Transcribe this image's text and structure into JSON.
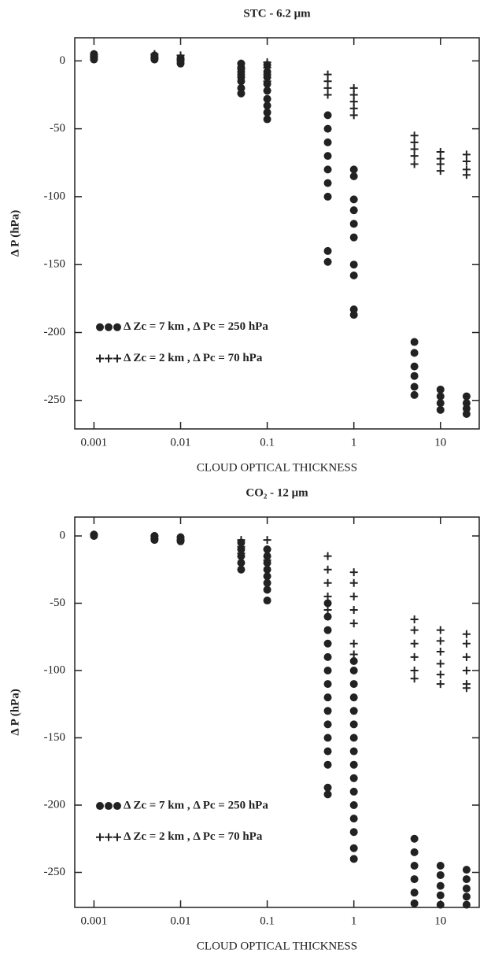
{
  "chart_data": [
    {
      "type": "scatter",
      "title": "STC - 6.2 μm",
      "x_label": "CLOUD OPTICAL THICKNESS",
      "y_label": "Δ P (hPa)",
      "log_x": true,
      "xlim": [
        0.0006,
        28
      ],
      "ylim": [
        -271,
        17
      ],
      "xticks": [
        0.001,
        0.01,
        0.1,
        1,
        10
      ],
      "yticks": [
        -250,
        -200,
        -150,
        -100,
        -50,
        0
      ],
      "legend": "left",
      "series": [
        {
          "name": "Δ Zc = 7 km , Δ Pc = 250 hPa",
          "marker": "circle",
          "color": "#222222",
          "x": [
            0.001,
            0.001,
            0.001,
            0.001,
            0.001,
            0.005,
            0.005,
            0.005,
            0.005,
            0.01,
            0.01,
            0.01,
            0.01,
            0.05,
            0.05,
            0.05,
            0.05,
            0.05,
            0.05,
            0.05,
            0.1,
            0.1,
            0.1,
            0.1,
            0.1,
            0.1,
            0.1,
            0.1,
            0.1,
            0.5,
            0.5,
            0.5,
            0.5,
            0.5,
            0.5,
            0.5,
            0.5,
            0.5,
            1,
            1,
            1,
            1,
            1,
            1,
            1,
            1,
            1,
            1,
            5,
            5,
            5,
            5,
            5,
            5,
            10,
            10,
            10,
            10,
            20,
            20,
            20,
            20
          ],
          "values": [
            5,
            3,
            2,
            1,
            4,
            3,
            1,
            2,
            4,
            2,
            0,
            -2,
            1,
            -2,
            -5,
            -8,
            -12,
            -15,
            -20,
            -24,
            -3,
            -8,
            -12,
            -17,
            -22,
            -28,
            -33,
            -38,
            -43,
            -40,
            -50,
            -60,
            -70,
            -80,
            -90,
            -100,
            -140,
            -148,
            -80,
            -85,
            -102,
            -110,
            -120,
            -130,
            -150,
            -158,
            -183,
            -187,
            -207,
            -215,
            -225,
            -232,
            -240,
            -246,
            -242,
            -247,
            -252,
            -257,
            -247,
            -252,
            -256,
            -260
          ]
        },
        {
          "name": "Δ Zc = 2 km , Δ Pc = 70 hPa",
          "marker": "cross",
          "color": "#222222",
          "x": [
            0.001,
            0.001,
            0.005,
            0.005,
            0.01,
            0.01,
            0.05,
            0.05,
            0.05,
            0.1,
            0.1,
            0.1,
            0.1,
            0.5,
            0.5,
            0.5,
            0.5,
            1,
            1,
            1,
            1,
            1,
            5,
            5,
            5,
            5,
            5,
            10,
            10,
            10,
            10,
            20,
            20,
            20,
            20
          ],
          "values": [
            3,
            5,
            5,
            2,
            4,
            1,
            -2,
            -6,
            -10,
            -1,
            -5,
            -10,
            -15,
            -10,
            -15,
            -20,
            -25,
            -20,
            -25,
            -30,
            -35,
            -40,
            -55,
            -60,
            -65,
            -70,
            -76,
            -67,
            -72,
            -76,
            -81,
            -69,
            -74,
            -80,
            -84
          ]
        }
      ]
    },
    {
      "type": "scatter",
      "title": "CO₂ - 12 μm",
      "x_label": "CLOUD OPTICAL THICKNESS",
      "y_label": "Δ P (hPa)",
      "log_x": true,
      "xlim": [
        0.0006,
        28
      ],
      "ylim": [
        -276,
        14
      ],
      "xticks": [
        0.001,
        0.01,
        0.1,
        1,
        10
      ],
      "yticks": [
        -250,
        -200,
        -150,
        -100,
        -50,
        0
      ],
      "legend": "left",
      "series": [
        {
          "name": "Δ Zc = 7 km , Δ Pc = 250 hPa",
          "marker": "circle",
          "color": "#222222",
          "x": [
            0.001,
            0.001,
            0.005,
            0.005,
            0.005,
            0.01,
            0.01,
            0.01,
            0.05,
            0.05,
            0.05,
            0.05,
            0.05,
            0.1,
            0.1,
            0.1,
            0.1,
            0.1,
            0.1,
            0.1,
            0.1,
            0.5,
            0.5,
            0.5,
            0.5,
            0.5,
            0.5,
            0.5,
            0.5,
            0.5,
            0.5,
            0.5,
            0.5,
            0.5,
            0.5,
            0.5,
            1,
            1,
            1,
            1,
            1,
            1,
            1,
            1,
            1,
            1,
            1,
            1,
            1,
            1,
            1,
            1,
            5,
            5,
            5,
            5,
            5,
            5,
            10,
            10,
            10,
            10,
            10,
            20,
            20,
            20,
            20,
            20
          ],
          "values": [
            1,
            0,
            0,
            -2,
            -3,
            -1,
            -3,
            -4,
            -5,
            -10,
            -15,
            -20,
            -25,
            -10,
            -15,
            -20,
            -25,
            -30,
            -35,
            -40,
            -48,
            -50,
            -60,
            -70,
            -80,
            -90,
            -100,
            -110,
            -120,
            -130,
            -140,
            -150,
            -160,
            -170,
            -187,
            -192,
            -93,
            -100,
            -110,
            -120,
            -130,
            -140,
            -150,
            -160,
            -170,
            -180,
            -190,
            -200,
            -210,
            -220,
            -232,
            -240,
            -225,
            -235,
            -245,
            -255,
            -265,
            -273,
            -245,
            -252,
            -260,
            -267,
            -274,
            -248,
            -255,
            -262,
            -268,
            -274
          ]
        },
        {
          "name": "Δ Zc = 2 km , Δ Pc = 70 hPa",
          "marker": "cross",
          "color": "#222222",
          "x": [
            0.001,
            0.005,
            0.005,
            0.01,
            0.01,
            0.05,
            0.05,
            0.05,
            0.1,
            0.1,
            0.1,
            0.5,
            0.5,
            0.5,
            0.5,
            0.5,
            1,
            1,
            1,
            1,
            1,
            1,
            1,
            5,
            5,
            5,
            5,
            5,
            5,
            10,
            10,
            10,
            10,
            10,
            10,
            20,
            20,
            20,
            20,
            20,
            20
          ],
          "values": [
            1,
            0,
            -2,
            -1,
            -3,
            -3,
            -8,
            -13,
            -3,
            -10,
            -18,
            -15,
            -25,
            -35,
            -45,
            -55,
            -27,
            -35,
            -45,
            -55,
            -65,
            -80,
            -88,
            -62,
            -70,
            -80,
            -90,
            -100,
            -106,
            -70,
            -78,
            -86,
            -95,
            -103,
            -110,
            -73,
            -80,
            -90,
            -100,
            -110,
            -113
          ]
        }
      ]
    }
  ]
}
